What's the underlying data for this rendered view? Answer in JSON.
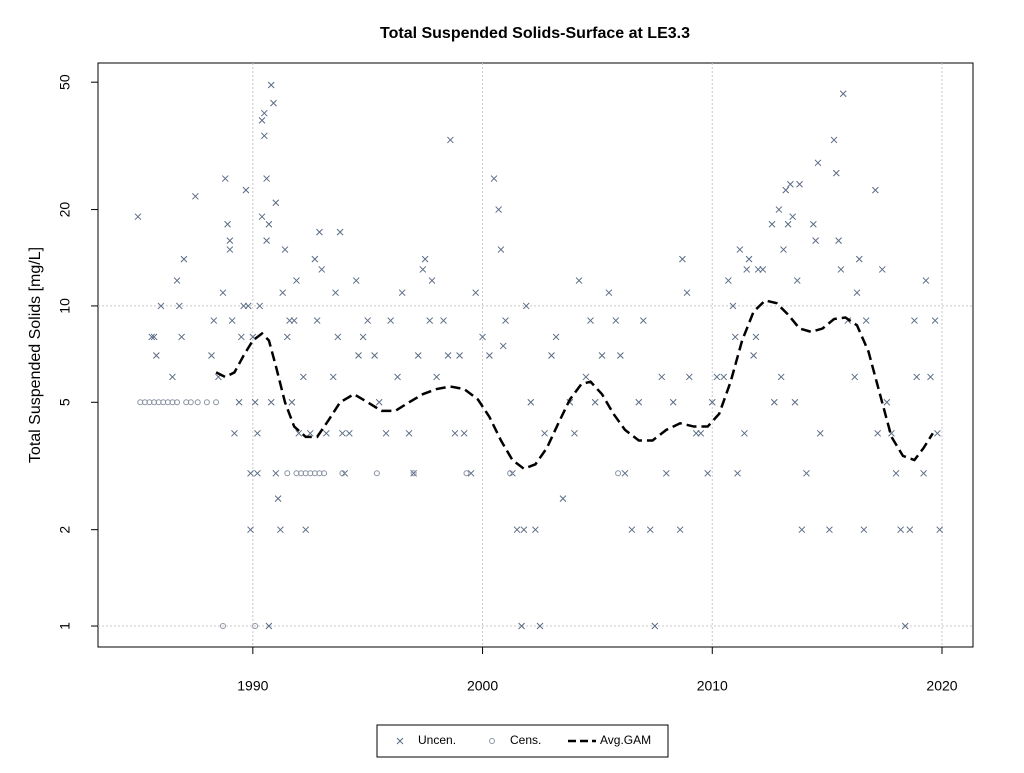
{
  "chart_data": {
    "type": "scatter",
    "title": "Total Suspended Solids-Surface at LE3.3",
    "y_label": "Total Suspended Solids [mg/L]",
    "log_y": true,
    "grid": true,
    "ygrid": [
      1,
      10
    ],
    "legend": "bottom",
    "xlim": [
      1983.26,
      2021.35
    ],
    "xticks": [
      1990,
      2000,
      2010,
      2020
    ],
    "ylim": [
      0.86,
      57.4
    ],
    "yticks": [
      1,
      2,
      5,
      10,
      20,
      50
    ],
    "series": [
      {
        "name": "Uncen.",
        "marker": "x",
        "color": "#5a6b85",
        "x": [
          1985.0,
          1985.6,
          1985.7,
          1985.8,
          1986.0,
          1986.5,
          1986.7,
          1986.8,
          1986.9,
          1987.0,
          1987.5,
          1988.2,
          1988.3,
          1988.5,
          1988.7,
          1988.8,
          1988.9,
          1989.0,
          1989.0,
          1989.1,
          1989.2,
          1989.4,
          1989.5,
          1989.6,
          1989.7,
          1989.8,
          1989.9,
          1989.9,
          1990.0,
          1990.1,
          1990.2,
          1990.2,
          1990.3,
          1990.4,
          1990.4,
          1990.5,
          1990.5,
          1990.6,
          1990.6,
          1990.7,
          1990.7,
          1990.8,
          1990.8,
          1990.9,
          1991.0,
          1991.0,
          1991.1,
          1991.2,
          1991.3,
          1991.4,
          1991.5,
          1991.6,
          1991.7,
          1991.8,
          1991.9,
          1992.0,
          1992.2,
          1992.3,
          1992.5,
          1992.7,
          1992.8,
          1992.9,
          1993.0,
          1993.2,
          1993.5,
          1993.6,
          1993.7,
          1993.8,
          1993.9,
          1994.0,
          1994.2,
          1994.5,
          1994.6,
          1994.8,
          1995.0,
          1995.3,
          1995.5,
          1995.8,
          1996.0,
          1996.3,
          1996.5,
          1996.8,
          1997.0,
          1997.2,
          1997.4,
          1997.5,
          1997.7,
          1997.8,
          1998.0,
          1998.3,
          1998.5,
          1998.6,
          1998.8,
          1999.0,
          1999.2,
          1999.5,
          1999.7,
          2000.0,
          2000.3,
          2000.5,
          2000.7,
          2000.8,
          2000.9,
          2001.0,
          2001.3,
          2001.5,
          2001.7,
          2001.8,
          2001.9,
          2002.1,
          2002.3,
          2002.5,
          2002.7,
          2003.0,
          2003.2,
          2003.5,
          2003.8,
          2004.0,
          2004.2,
          2004.5,
          2004.7,
          2004.9,
          2005.2,
          2005.5,
          2005.8,
          2006.0,
          2006.2,
          2006.5,
          2006.8,
          2007.0,
          2007.3,
          2007.5,
          2007.8,
          2008.0,
          2008.3,
          2008.6,
          2008.7,
          2008.9,
          2009.0,
          2009.3,
          2009.5,
          2009.8,
          2010.0,
          2010.2,
          2010.5,
          2010.7,
          2010.9,
          2011.0,
          2011.1,
          2011.2,
          2011.4,
          2011.5,
          2011.6,
          2011.8,
          2011.9,
          2012.0,
          2012.2,
          2012.6,
          2012.7,
          2012.9,
          2013.0,
          2013.1,
          2013.2,
          2013.3,
          2013.4,
          2013.5,
          2013.6,
          2013.7,
          2013.8,
          2013.9,
          2014.1,
          2014.4,
          2014.5,
          2014.6,
          2014.7,
          2015.1,
          2015.3,
          2015.4,
          2015.5,
          2015.6,
          2015.7,
          2015.9,
          2016.2,
          2016.3,
          2016.4,
          2016.6,
          2016.7,
          2017.1,
          2017.2,
          2017.4,
          2017.6,
          2017.8,
          2018.0,
          2018.2,
          2018.4,
          2018.6,
          2018.8,
          2018.9,
          2019.2,
          2019.3,
          2019.5,
          2019.7,
          2019.8,
          2019.9
        ],
        "values": [
          19,
          8,
          8,
          7,
          10,
          6,
          12,
          10,
          8,
          14,
          22,
          7,
          9,
          6,
          11,
          25,
          18,
          16,
          15,
          9,
          4,
          5,
          8,
          10,
          23,
          10,
          3,
          2,
          8,
          5,
          3,
          4,
          10,
          19,
          38,
          34,
          40,
          16,
          25,
          18,
          1,
          49,
          5,
          43,
          21,
          3,
          2.5,
          2,
          11,
          15,
          8,
          9,
          5,
          9,
          12,
          4,
          6,
          2,
          4,
          14,
          9,
          17,
          13,
          4,
          6,
          11,
          8,
          17,
          4,
          3,
          4,
          12,
          7,
          8,
          9,
          7,
          5,
          4,
          9,
          6,
          11,
          4,
          3,
          7,
          13,
          14,
          9,
          12,
          6,
          9,
          7,
          33,
          4,
          7,
          4,
          3,
          11,
          8,
          7,
          25,
          20,
          15,
          7.5,
          9,
          3,
          2,
          1,
          2,
          10,
          5,
          2,
          1,
          4,
          7,
          8,
          2.5,
          5,
          4,
          12,
          6,
          9,
          5,
          7,
          11,
          9,
          7,
          3,
          2,
          5,
          9,
          2,
          1,
          6,
          3,
          5,
          2,
          14,
          11,
          6,
          4,
          4,
          3,
          5,
          6,
          6,
          12,
          10,
          8,
          3,
          15,
          4,
          13,
          14,
          7,
          8,
          13,
          13,
          18,
          5,
          20,
          6,
          15,
          23,
          18,
          24,
          19,
          5,
          12,
          24,
          2,
          3,
          18,
          16,
          28,
          4,
          2,
          33,
          26,
          16,
          13,
          46,
          9,
          6,
          11,
          14,
          2,
          9,
          23,
          4,
          13,
          5,
          4,
          3,
          2,
          1,
          2,
          9,
          6,
          3,
          12,
          6,
          9,
          4,
          2
        ]
      },
      {
        "name": "Cens.",
        "marker": "o",
        "color": "#8a93a3",
        "x": [
          1985.1,
          1985.3,
          1985.5,
          1985.7,
          1985.9,
          1986.1,
          1986.3,
          1986.5,
          1986.7,
          1987.1,
          1987.3,
          1987.6,
          1988.0,
          1988.4,
          1988.7,
          1990.1,
          1991.5,
          1991.9,
          1992.1,
          1992.3,
          1992.5,
          1992.7,
          1992.9,
          1993.1,
          1993.9,
          1995.4,
          1997.0,
          1999.3,
          2001.2,
          2005.9
        ],
        "values": [
          5,
          5,
          5,
          5,
          5,
          5,
          5,
          5,
          5,
          5,
          5,
          5,
          5,
          5,
          1,
          1,
          3,
          3,
          3,
          3,
          3,
          3,
          3,
          3,
          3,
          3,
          3,
          3,
          3,
          3
        ]
      },
      {
        "name": "Avg.GAM",
        "marker": "line",
        "color": "#000000",
        "x": [
          1988.4,
          1988.8,
          1989.2,
          1989.6,
          1990.0,
          1990.4,
          1990.7,
          1991.0,
          1991.4,
          1991.8,
          1992.3,
          1992.8,
          1993.3,
          1993.8,
          1994.4,
          1995.0,
          1995.6,
          1996.2,
          1996.8,
          1997.4,
          1998.0,
          1998.6,
          1999.2,
          1999.8,
          2000.3,
          2000.8,
          2001.3,
          2001.8,
          2002.3,
          2002.8,
          2003.3,
          2003.8,
          2004.3,
          2004.7,
          2005.2,
          2005.7,
          2006.2,
          2006.8,
          2007.4,
          2008.0,
          2008.6,
          2009.2,
          2009.8,
          2010.3,
          2010.8,
          2011.3,
          2011.8,
          2012.3,
          2012.8,
          2013.3,
          2013.8,
          2014.3,
          2014.8,
          2015.3,
          2015.8,
          2016.3,
          2016.8,
          2017.3,
          2017.8,
          2018.3,
          2018.8,
          2019.2,
          2019.6
        ],
        "values": [
          6.2,
          6,
          6.2,
          7,
          7.8,
          8.2,
          7.8,
          6.5,
          5,
          4.2,
          3.9,
          3.9,
          4.4,
          5,
          5.3,
          5,
          4.7,
          4.7,
          5,
          5.3,
          5.5,
          5.6,
          5.5,
          5.1,
          4.5,
          3.8,
          3.3,
          3.1,
          3.2,
          3.6,
          4.3,
          5.1,
          5.7,
          5.8,
          5.3,
          4.6,
          4.1,
          3.8,
          3.8,
          4.1,
          4.3,
          4.2,
          4.2,
          4.6,
          5.8,
          7.8,
          9.6,
          10.4,
          10.2,
          9.4,
          8.5,
          8.3,
          8.5,
          9.1,
          9.2,
          8.7,
          7.2,
          5.3,
          3.9,
          3.4,
          3.3,
          3.6,
          4.0
        ]
      }
    ]
  }
}
